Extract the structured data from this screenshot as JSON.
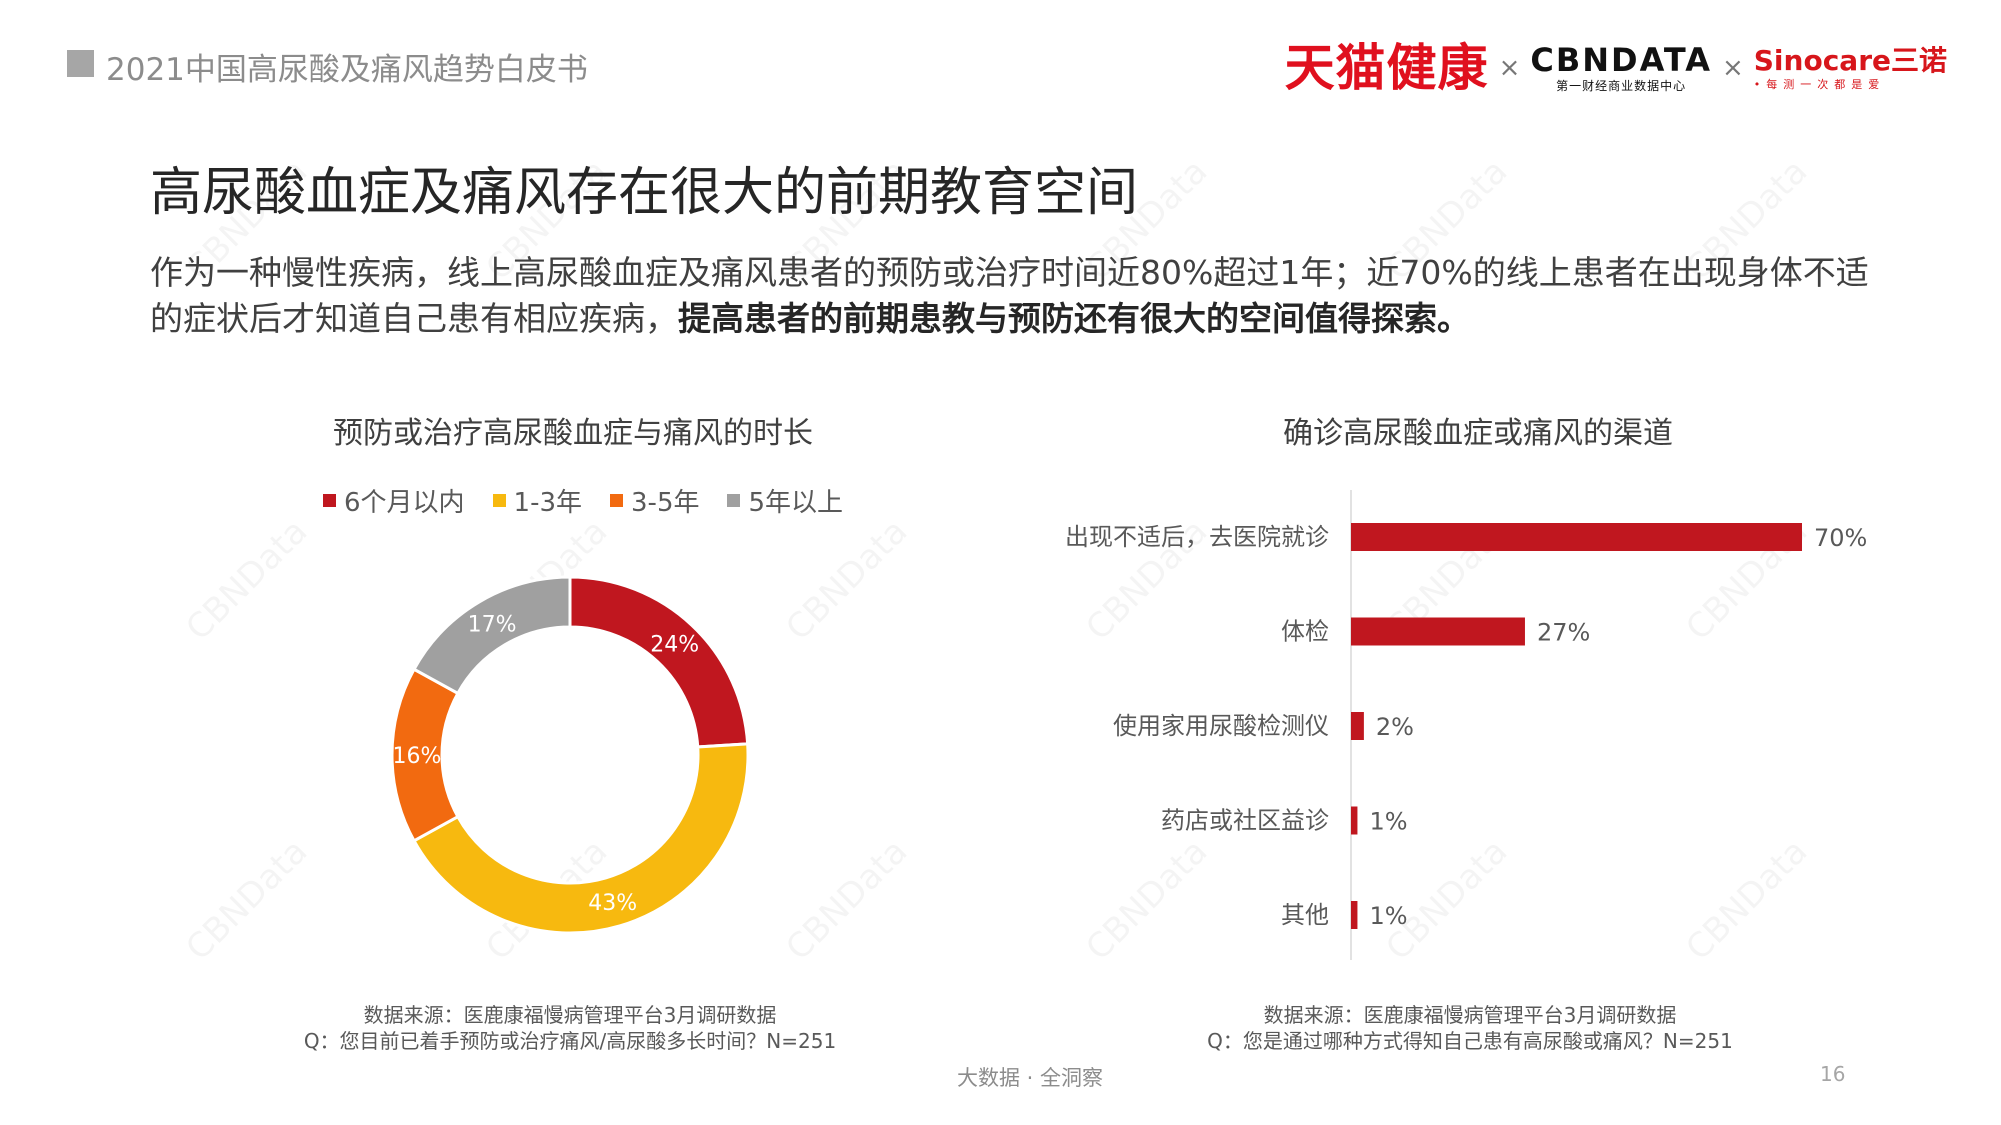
{
  "header": {
    "report_title": "2021中国高尿酸及痛风趋势白皮书",
    "logos": {
      "tmall": "天猫健康",
      "separator": "×",
      "cbndata": "CBNDATA",
      "cbndata_sub": "第一财经商业数据中心",
      "sinocare": "Sinocare三诺",
      "sinocare_sub": "•每测一次都是爱"
    }
  },
  "main": {
    "title": "高尿酸血症及痛风存在很大的前期教育空间",
    "description_plain": "作为一种慢性疾病，线上高尿酸血症及痛风患者的预防或治疗时间近80%超过1年；近70%的线上患者在出现身体不适的症状后才知道自己患有相应疾病，",
    "description_bold": "提高患者的前期患教与预防还有很大的空间值得探索。"
  },
  "watermark": "CBNData",
  "chart_data": [
    {
      "type": "pie",
      "variant": "donut",
      "title": "预防或治疗高尿酸血症与痛风的时长",
      "legend_position": "top",
      "categories": [
        "6个月以内",
        "1-3年",
        "3-5年",
        "5年以上"
      ],
      "values": [
        24,
        43,
        16,
        17
      ],
      "labels": [
        "24%",
        "43%",
        "16%",
        "17%"
      ],
      "colors": [
        "#c0171f",
        "#f7b90f",
        "#f26a10",
        "#a0a0a0"
      ],
      "source": "数据来源：医鹿康福慢病管理平台3月调研数据",
      "question": "Q：您目前已着手预防或治疗痛风/高尿酸多长时间？N=251"
    },
    {
      "type": "bar",
      "orientation": "horizontal",
      "title": "确诊高尿酸血症或痛风的渠道",
      "categories": [
        "出现不适后，去医院就诊",
        "体检",
        "使用家用尿酸检测仪",
        "药店或社区益诊",
        "其他"
      ],
      "values": [
        70,
        27,
        2,
        1,
        1
      ],
      "labels": [
        "70%",
        "27%",
        "2%",
        "1%",
        "1%"
      ],
      "xlim": [
        0,
        70
      ],
      "color": "#c0171f",
      "source": "数据来源：医鹿康福慢病管理平台3月调研数据",
      "question": "Q：您是通过哪种方式得知自己患有高尿酸或痛风？N=251"
    }
  ],
  "footer": {
    "text": "大数据 · 全洞察",
    "page_number": "16"
  }
}
